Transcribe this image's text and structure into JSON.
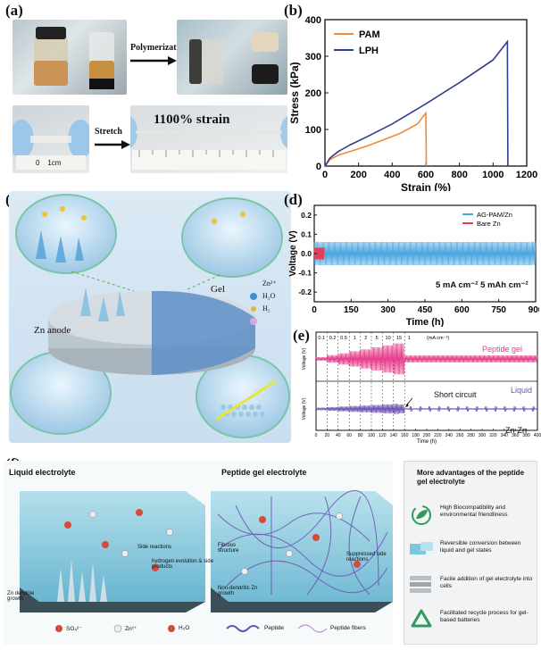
{
  "panels": {
    "a": {
      "letter": "(a)",
      "polymerization_label": "Polymerization",
      "stretch_label": "Stretch",
      "strain_label": "1100% strain",
      "ruler_left": "0    1cm"
    },
    "b": {
      "letter": "(b)"
    },
    "c": {
      "letter": "(c)",
      "gel_label": "Gel",
      "zn_anode_label": "Zn anode",
      "legend_zn": "Zn²⁺",
      "legend_h2o": "H₂O",
      "legend_h2": "H₂"
    },
    "d": {
      "letter": "(d)",
      "annotation": "5 mA cm⁻²  5 mAh cm⁻²"
    },
    "e": {
      "letter": "(e)",
      "peptide_gel_label": "Peptide gel",
      "liquid_label": "Liquid",
      "short_circuit_label": "Short circuit",
      "cell_label": "Zn-Zn",
      "current_steps": [
        "0.1",
        "0.2",
        "0.5",
        "1",
        "2",
        "5",
        "10",
        "15",
        "1",
        "(mA cm⁻²)"
      ]
    },
    "f": {
      "letter": "(f)",
      "liquid_title": "Liquid electrolyte",
      "gel_title": "Peptide gel electrolyte",
      "liquid_notes": [
        "Side reactions",
        "hydrogen evolution & side products",
        "Zn dendrite growth"
      ],
      "gel_notes": [
        "Fibrous structure",
        "Suppressed side reactions",
        "Non-dendritic Zn growth"
      ],
      "legend": [
        "SO₄²⁻",
        "Zn²⁺",
        "H₂O",
        "Peptide",
        "Peptide fibers"
      ],
      "advantages_title": "More advantages of the peptide gel electrolyte",
      "advantages": [
        "High Biocompatibility and environmental friendliness",
        "Reversible conversion between liquid and gel states",
        "Facile addition of gel electrolyte into cells",
        "Facilitated recycle process for gel-based batteries"
      ]
    }
  },
  "chart_data": [
    {
      "id": "b",
      "type": "line",
      "xlabel": "Strain (%)",
      "ylabel": "Stress (kPa)",
      "xlim": [
        0,
        1200
      ],
      "ylim": [
        0,
        400
      ],
      "xticks": [
        0,
        200,
        400,
        600,
        800,
        1000,
        1200
      ],
      "yticks": [
        0,
        100,
        200,
        300,
        400
      ],
      "legend_position": "top-left",
      "series": [
        {
          "name": "PAM",
          "color": "#f08a3c",
          "x": [
            0,
            30,
            80,
            150,
            250,
            350,
            450,
            550,
            600,
            603
          ],
          "y": [
            0,
            18,
            30,
            40,
            55,
            72,
            90,
            115,
            145,
            0
          ]
        },
        {
          "name": "LPH",
          "color": "#2e3f8f",
          "x": [
            0,
            30,
            80,
            150,
            250,
            400,
            600,
            800,
            1000,
            1085,
            1088
          ],
          "y": [
            0,
            22,
            40,
            58,
            80,
            115,
            170,
            228,
            290,
            340,
            0
          ]
        }
      ]
    },
    {
      "id": "d",
      "type": "line",
      "xlabel": "Time (h)",
      "ylabel": "Voltage (V)",
      "xlim": [
        0,
        900
      ],
      "ylim": [
        -0.25,
        0.25
      ],
      "xticks": [
        0,
        150,
        300,
        450,
        600,
        750,
        900
      ],
      "yticks": [
        -0.2,
        -0.1,
        0.0,
        0.1,
        0.2
      ],
      "legend_position": "top-right",
      "series": [
        {
          "name": "AG-PAM/Zn",
          "color": "#4aa6e0",
          "x": [
            0,
            900
          ],
          "y_band": [
            -0.06,
            0.06
          ]
        },
        {
          "name": "Bare Zn",
          "color": "#e0405a",
          "x": [
            0,
            40
          ],
          "y_band": [
            -0.03,
            0.03
          ]
        }
      ]
    },
    {
      "id": "e",
      "type": "line",
      "xlabel": "Time (h)",
      "ylabel": "Voltage (V)",
      "xlim": [
        0,
        400
      ],
      "xticks": [
        0,
        20,
        40,
        60,
        80,
        100,
        120,
        140,
        160,
        180,
        200,
        220,
        240,
        260,
        280,
        300,
        320,
        340,
        360,
        380,
        400
      ],
      "series": [
        {
          "name": "Peptide gel",
          "color": "#e63b8a"
        },
        {
          "name": "Liquid",
          "color": "#6a4fb3"
        }
      ]
    }
  ]
}
